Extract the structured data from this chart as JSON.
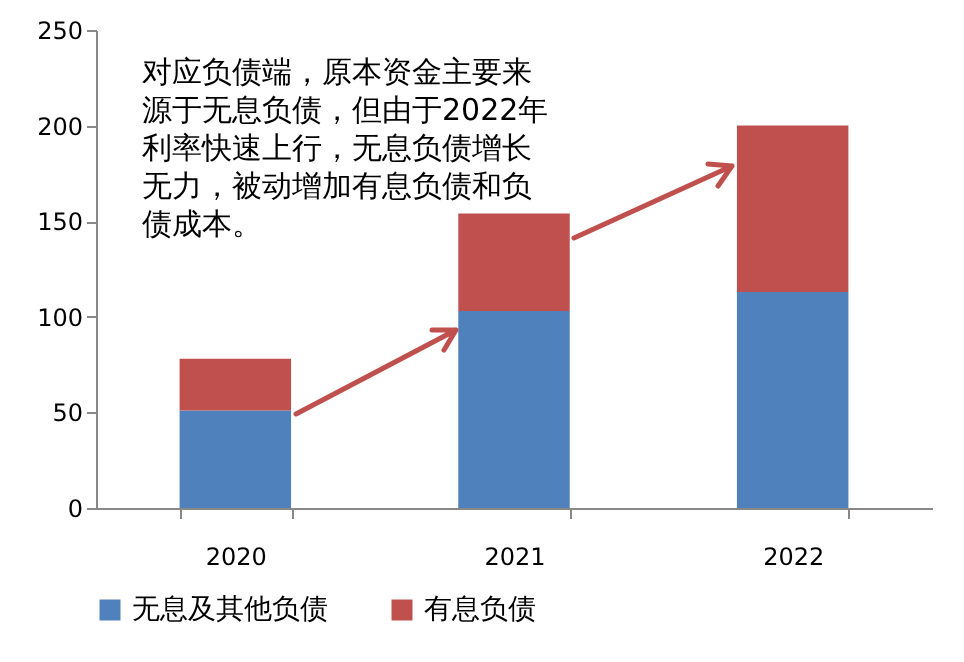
{
  "chart_data": {
    "type": "bar",
    "stacked": true,
    "categories": [
      "2020",
      "2021",
      "2022"
    ],
    "series": [
      {
        "name": "无息及其他负债",
        "color": "#4f81bd",
        "values": [
          51,
          103,
          113
        ]
      },
      {
        "name": "有息负债",
        "color": "#c0504d",
        "values": [
          27,
          51,
          87
        ]
      }
    ],
    "ylim": [
      0,
      250
    ],
    "yticks": [
      0,
      50,
      100,
      150,
      200,
      250
    ],
    "grid": false,
    "legend": "bottom",
    "annotations": [
      "对应负债端，原本资金主要来源于无息负债，但由于2022年利率快速上行，无息负债增长无力，被动增加有息负债和负债成本。"
    ]
  }
}
